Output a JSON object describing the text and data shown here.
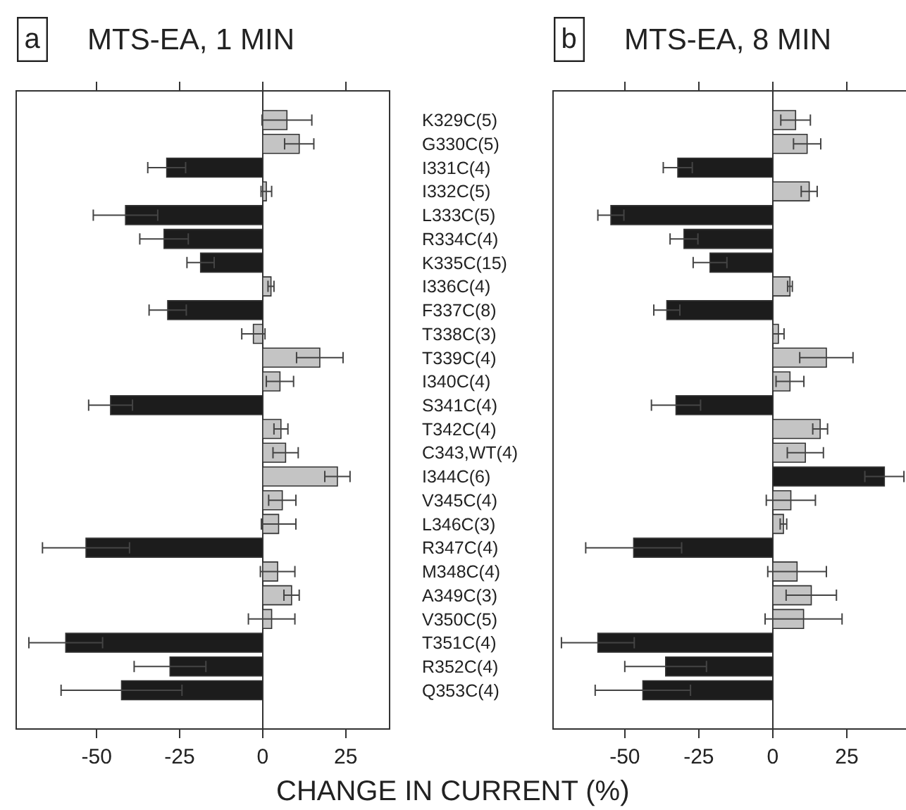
{
  "chart_data": [
    {
      "type": "bar",
      "orientation": "horizontal",
      "title": "MTS-EA, 1 MIN",
      "annotations": [
        "a"
      ],
      "xlabel": "CHANGE IN CURRENT (%)",
      "categories": [
        "K329C(5)",
        "G330C(5)",
        "I331C(4)",
        "I332C(5)",
        "L333C(5)",
        "R334C(4)",
        "K335C(15)",
        "I336C(4)",
        "F337C(8)",
        "T338C(3)",
        "T339C(4)",
        "I340C(4)",
        "S341C(4)",
        "T342C(4)",
        "C343,WT(4)",
        "I344C(6)",
        "V345C(4)",
        "L346C(3)",
        "R347C(4)",
        "M348C(4)",
        "A349C(3)",
        "V350C(5)",
        "T351C(4)",
        "R352C(4)",
        "Q353C(4)"
      ],
      "values": [
        7.3,
        11,
        -28.9,
        1.1,
        -41.3,
        -29.7,
        -18.7,
        2.5,
        -28.6,
        -2.8,
        17.2,
        5.2,
        -45.8,
        5.5,
        6.9,
        22.5,
        5.9,
        4.8,
        -53.2,
        4.5,
        8.7,
        2.7,
        -59.3,
        -27.9,
        -42.5
      ],
      "errors": [
        7.5,
        4.4,
        5.7,
        1.6,
        9.7,
        7.3,
        4.1,
        0.9,
        5.6,
        3.5,
        7,
        4.1,
        6.6,
        2.1,
        3.8,
        3.8,
        4.1,
        5.2,
        13.1,
        5.2,
        2.3,
        7,
        11.1,
        10.8,
        18.2
      ],
      "colors": [
        "#c4c4c4",
        "#c4c4c4",
        "#1c1c1c",
        "#c4c4c4",
        "#1c1c1c",
        "#1c1c1c",
        "#1c1c1c",
        "#c4c4c4",
        "#1c1c1c",
        "#c4c4c4",
        "#c4c4c4",
        "#c4c4c4",
        "#1c1c1c",
        "#c4c4c4",
        "#c4c4c4",
        "#c4c4c4",
        "#c4c4c4",
        "#c4c4c4",
        "#1c1c1c",
        "#c4c4c4",
        "#c4c4c4",
        "#c4c4c4",
        "#1c1c1c",
        "#1c1c1c",
        "#1c1c1c"
      ],
      "xlim": [
        -74,
        38
      ],
      "xticks": [
        -50,
        -25,
        0,
        25
      ]
    },
    {
      "type": "bar",
      "orientation": "horizontal",
      "title": "MTS-EA, 8 MIN",
      "annotations": [
        "b"
      ],
      "tick_labels": "x",
      "categories": [
        null,
        null,
        null,
        null,
        null,
        null,
        null,
        null,
        null,
        null,
        null,
        null,
        null,
        null,
        null,
        null,
        null,
        null,
        null,
        null,
        null,
        null,
        null,
        null,
        null
      ],
      "values": [
        7.7,
        11.6,
        -32.1,
        12.3,
        -54.7,
        -30,
        -21.2,
        5.8,
        -35.8,
        1.9,
        18.1,
        5.8,
        -32.7,
        16,
        11,
        37.7,
        6.1,
        3.6,
        -47,
        8.2,
        13,
        10.4,
        -59.1,
        -36.2,
        -43.9
      ],
      "errors": [
        5,
        4.6,
        4.9,
        2.7,
        4.4,
        4.7,
        5.7,
        0.8,
        4.4,
        1.9,
        9,
        4.7,
        8.3,
        2.5,
        6.1,
        6.6,
        8.3,
        1.1,
        16.2,
        9.9,
        8.5,
        13,
        12.3,
        13.8,
        16.1
      ],
      "colors": [
        "#c4c4c4",
        "#c4c4c4",
        "#1c1c1c",
        "#c4c4c4",
        "#1c1c1c",
        "#1c1c1c",
        "#1c1c1c",
        "#c4c4c4",
        "#1c1c1c",
        "#c4c4c4",
        "#c4c4c4",
        "#c4c4c4",
        "#1c1c1c",
        "#c4c4c4",
        "#c4c4c4",
        "#1c1c1c",
        "#c4c4c4",
        "#c4c4c4",
        "#1c1c1c",
        "#c4c4c4",
        "#c4c4c4",
        "#c4c4c4",
        "#1c1c1c",
        "#1c1c1c",
        "#1c1c1c"
      ],
      "xlim": [
        -74,
        45
      ],
      "xticks": [
        -50,
        -25,
        0,
        25
      ]
    }
  ]
}
